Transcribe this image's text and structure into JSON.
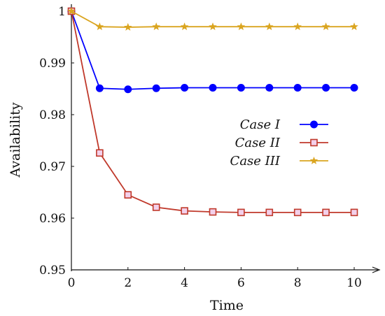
{
  "chart_data": {
    "type": "line",
    "xlabel": "Time",
    "ylabel": "Availability",
    "xlim": [
      0,
      10.8
    ],
    "ylim": [
      0.95,
      1.0
    ],
    "x_ticks": [
      "0",
      "2",
      "4",
      "6",
      "8",
      "10"
    ],
    "y_ticks": [
      "0.95",
      "0.96",
      "0.97",
      "0.98",
      "0.99",
      "1"
    ],
    "grid": false,
    "legend_position": "center-right",
    "series": [
      {
        "name": "Case I",
        "color": "#0000ff",
        "marker": "circle-filled",
        "x": [
          0,
          1,
          2,
          3,
          4,
          5,
          6,
          7,
          8,
          9,
          10
        ],
        "y": [
          1.0,
          0.9851,
          0.9849,
          0.9851,
          0.9852,
          0.9852,
          0.9852,
          0.9852,
          0.9852,
          0.9852,
          0.9852
        ]
      },
      {
        "name": "Case II",
        "color": "#c0392b",
        "marker": "square-open",
        "x": [
          0,
          1,
          2,
          3,
          4,
          5,
          6,
          7,
          8,
          9,
          10
        ],
        "y": [
          1.0,
          0.9726,
          0.9645,
          0.9621,
          0.9614,
          0.9612,
          0.9611,
          0.9611,
          0.9611,
          0.9611,
          0.9611
        ]
      },
      {
        "name": "Case III",
        "color": "#daa520",
        "marker": "star",
        "x": [
          0,
          1,
          2,
          3,
          4,
          5,
          6,
          7,
          8,
          9,
          10
        ],
        "y": [
          1.0,
          0.997,
          0.9969,
          0.997,
          0.997,
          0.997,
          0.997,
          0.997,
          0.997,
          0.997,
          0.997
        ]
      }
    ]
  }
}
